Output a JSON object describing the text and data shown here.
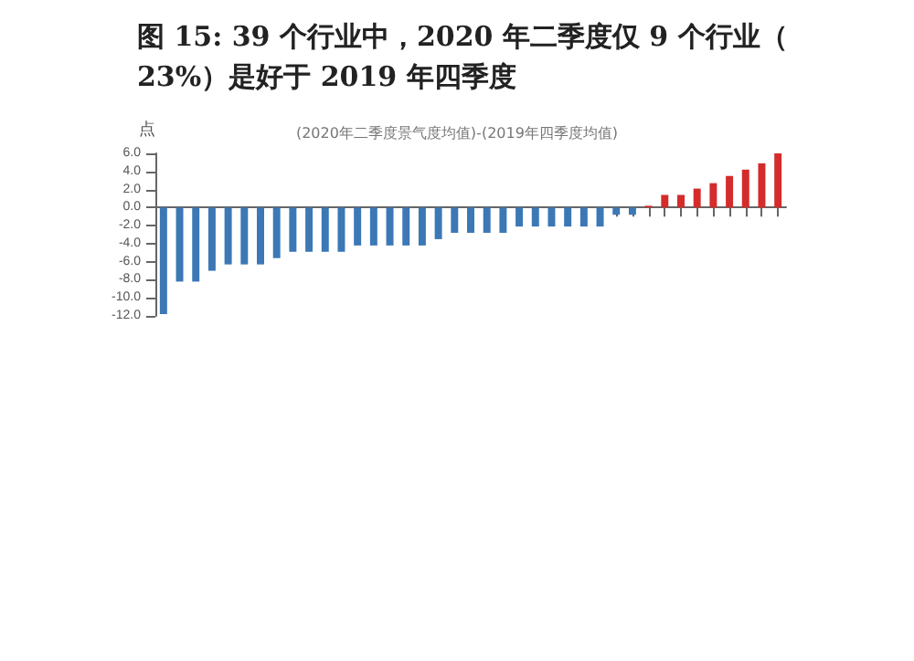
{
  "chart_data": {
    "type": "bar",
    "title": "图 15: 39 个行业中，2020 年二季度仅 9 个行业（23%）是好于 2019 年四季度",
    "subtitle": "(2020年二季度景气度均值)-(2019年四季度均值)",
    "ylabel": "点",
    "categories": [
      null,
      null,
      null,
      null,
      null,
      null,
      null,
      null,
      null,
      null,
      null,
      null,
      null,
      null,
      null,
      null,
      null,
      null,
      null,
      null,
      null,
      null,
      null,
      null,
      null,
      null,
      null,
      null,
      null,
      null,
      null,
      null,
      null,
      null,
      null,
      null,
      null,
      null,
      null
    ],
    "values": [
      -11.8,
      -8.2,
      -8.2,
      -7.0,
      -6.3,
      -6.3,
      -6.3,
      -5.6,
      -4.9,
      -4.9,
      -4.9,
      -4.9,
      -4.2,
      -4.2,
      -4.2,
      -4.2,
      -4.2,
      -3.5,
      -2.8,
      -2.8,
      -2.8,
      -2.8,
      -2.1,
      -2.1,
      -2.1,
      -2.1,
      -2.1,
      -2.1,
      -0.8,
      -0.8,
      0.2,
      1.4,
      1.4,
      2.1,
      2.7,
      3.5,
      4.2,
      4.9,
      6.0
    ],
    "colors": [
      "#3b78b5",
      "#3b78b5",
      "#3b78b5",
      "#3b78b5",
      "#3b78b5",
      "#3b78b5",
      "#3b78b5",
      "#3b78b5",
      "#3b78b5",
      "#3b78b5",
      "#3b78b5",
      "#3b78b5",
      "#3b78b5",
      "#3b78b5",
      "#3b78b5",
      "#3b78b5",
      "#3b78b5",
      "#3b78b5",
      "#3b78b5",
      "#3b78b5",
      "#3b78b5",
      "#3b78b5",
      "#3b78b5",
      "#3b78b5",
      "#3b78b5",
      "#3b78b5",
      "#3b78b5",
      "#3b78b5",
      "#3b78b5",
      "#3b78b5",
      "#d42b2b",
      "#d42b2b",
      "#d42b2b",
      "#d42b2b",
      "#d42b2b",
      "#d42b2b",
      "#d42b2b",
      "#d42b2b",
      "#d42b2b"
    ],
    "ylim": [
      -12,
      6
    ],
    "yticks": [
      {
        "value": -12,
        "label": "-12.0"
      },
      {
        "value": -10,
        "label": "-10.0"
      },
      {
        "value": -8,
        "label": "-8.0"
      },
      {
        "value": -6,
        "label": "-6.0"
      },
      {
        "value": -4,
        "label": "-4.0"
      },
      {
        "value": -2,
        "label": "-2.0"
      },
      {
        "value": 0,
        "label": "0.0"
      },
      {
        "value": 2,
        "label": "2.0"
      },
      {
        "value": 4,
        "label": "4.0"
      },
      {
        "value": 6,
        "label": "6.0"
      }
    ]
  }
}
